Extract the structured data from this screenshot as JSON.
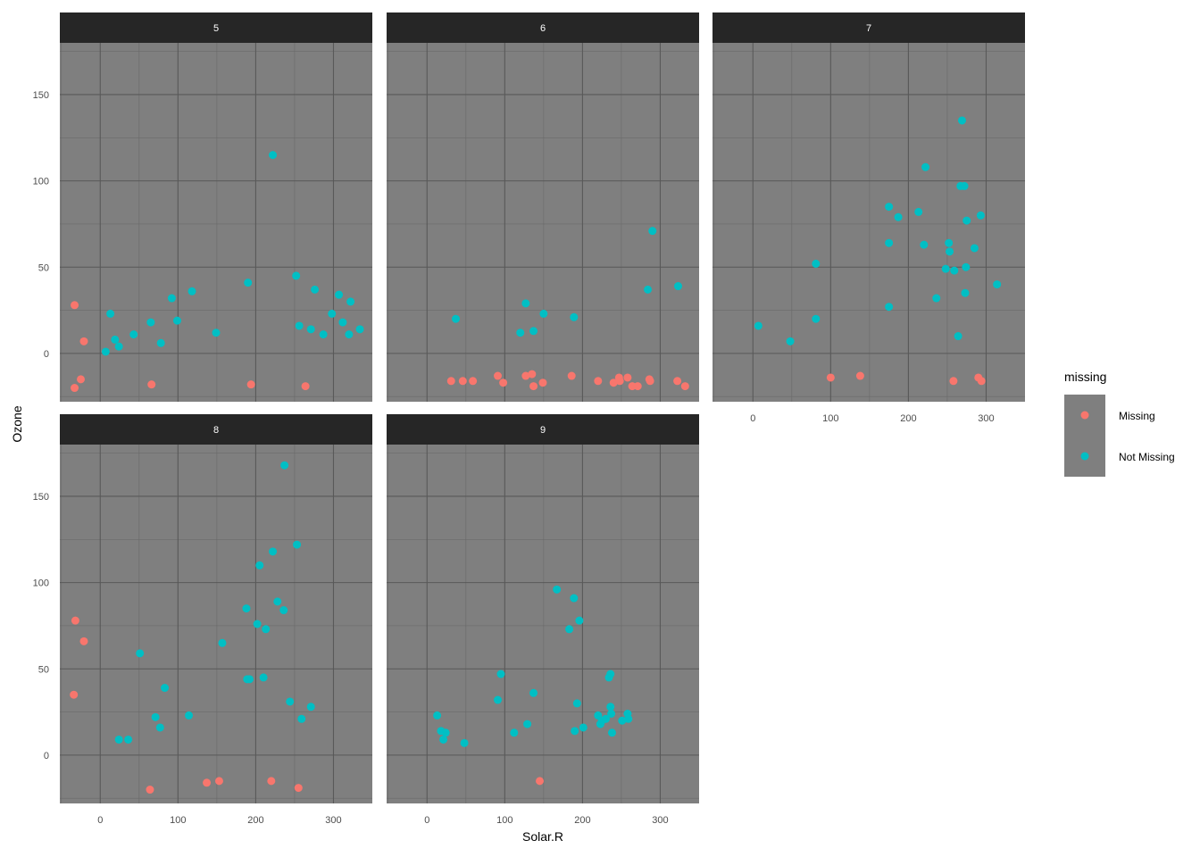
{
  "chart_data": {
    "type": "scatter",
    "facet_by": "Month",
    "xlabel": "Solar.R",
    "ylabel": "Ozone",
    "xlim": [
      -52,
      350
    ],
    "ylim": [
      -28,
      180
    ],
    "x_ticks": [
      0,
      100,
      200,
      300
    ],
    "y_ticks": [
      0,
      50,
      100,
      150
    ],
    "grid": true,
    "legend": {
      "title": "missing",
      "position": "right",
      "entries": [
        {
          "label": "Missing",
          "color": "#F8766D"
        },
        {
          "label": "Not Missing",
          "color": "#00BFC4"
        }
      ]
    },
    "colors": {
      "Missing": "#F8766D",
      "Not Missing": "#00BFC4",
      "panel_background": "#7F7F7F",
      "strip_background": "#262626",
      "grid_major": "#595959"
    },
    "panels": [
      {
        "label": "5",
        "points": [
          {
            "x": -33,
            "y": 28,
            "m": "Missing"
          },
          {
            "x": -21,
            "y": 7,
            "m": "Missing"
          },
          {
            "x": -25,
            "y": -15,
            "m": "Missing"
          },
          {
            "x": -33,
            "y": -20,
            "m": "Missing"
          },
          {
            "x": 66,
            "y": -18,
            "m": "Missing"
          },
          {
            "x": 194,
            "y": -18,
            "m": "Missing"
          },
          {
            "x": 264,
            "y": -19,
            "m": "Missing"
          },
          {
            "x": 7,
            "y": 1,
            "m": "Not Missing"
          },
          {
            "x": 13,
            "y": 23,
            "m": "Not Missing"
          },
          {
            "x": 19,
            "y": 8,
            "m": "Not Missing"
          },
          {
            "x": 24,
            "y": 4,
            "m": "Not Missing"
          },
          {
            "x": 43,
            "y": 11,
            "m": "Not Missing"
          },
          {
            "x": 65,
            "y": 18,
            "m": "Not Missing"
          },
          {
            "x": 78,
            "y": 6,
            "m": "Not Missing"
          },
          {
            "x": 92,
            "y": 32,
            "m": "Not Missing"
          },
          {
            "x": 99,
            "y": 19,
            "m": "Not Missing"
          },
          {
            "x": 118,
            "y": 36,
            "m": "Not Missing"
          },
          {
            "x": 149,
            "y": 12,
            "m": "Not Missing"
          },
          {
            "x": 190,
            "y": 41,
            "m": "Not Missing"
          },
          {
            "x": 222,
            "y": 115,
            "m": "Not Missing"
          },
          {
            "x": 252,
            "y": 45,
            "m": "Not Missing"
          },
          {
            "x": 256,
            "y": 16,
            "m": "Not Missing"
          },
          {
            "x": 271,
            "y": 14,
            "m": "Not Missing"
          },
          {
            "x": 276,
            "y": 37,
            "m": "Not Missing"
          },
          {
            "x": 287,
            "y": 11,
            "m": "Not Missing"
          },
          {
            "x": 298,
            "y": 23,
            "m": "Not Missing"
          },
          {
            "x": 307,
            "y": 34,
            "m": "Not Missing"
          },
          {
            "x": 312,
            "y": 18,
            "m": "Not Missing"
          },
          {
            "x": 320,
            "y": 11,
            "m": "Not Missing"
          },
          {
            "x": 322,
            "y": 30,
            "m": "Not Missing"
          },
          {
            "x": 334,
            "y": 14,
            "m": "Not Missing"
          }
        ]
      },
      {
        "label": "6",
        "points": [
          {
            "x": 31,
            "y": -16,
            "m": "Missing"
          },
          {
            "x": 46,
            "y": -16,
            "m": "Missing"
          },
          {
            "x": 59,
            "y": -16,
            "m": "Missing"
          },
          {
            "x": 91,
            "y": -13,
            "m": "Missing"
          },
          {
            "x": 98,
            "y": -17,
            "m": "Missing"
          },
          {
            "x": 127,
            "y": -13,
            "m": "Missing"
          },
          {
            "x": 135,
            "y": -12,
            "m": "Missing"
          },
          {
            "x": 137,
            "y": -19,
            "m": "Missing"
          },
          {
            "x": 149,
            "y": -17,
            "m": "Missing"
          },
          {
            "x": 186,
            "y": -13,
            "m": "Missing"
          },
          {
            "x": 220,
            "y": -16,
            "m": "Missing"
          },
          {
            "x": 240,
            "y": -17,
            "m": "Missing"
          },
          {
            "x": 247,
            "y": -14,
            "m": "Missing"
          },
          {
            "x": 248,
            "y": -16,
            "m": "Missing"
          },
          {
            "x": 258,
            "y": -14,
            "m": "Missing"
          },
          {
            "x": 264,
            "y": -19,
            "m": "Missing"
          },
          {
            "x": 271,
            "y": -19,
            "m": "Missing"
          },
          {
            "x": 286,
            "y": -15,
            "m": "Missing"
          },
          {
            "x": 287,
            "y": -16,
            "m": "Missing"
          },
          {
            "x": 322,
            "y": -16,
            "m": "Missing"
          },
          {
            "x": 332,
            "y": -19,
            "m": "Missing"
          },
          {
            "x": 37,
            "y": 20,
            "m": "Not Missing"
          },
          {
            "x": 120,
            "y": 12,
            "m": "Not Missing"
          },
          {
            "x": 127,
            "y": 29,
            "m": "Not Missing"
          },
          {
            "x": 137,
            "y": 13,
            "m": "Not Missing"
          },
          {
            "x": 150,
            "y": 23,
            "m": "Not Missing"
          },
          {
            "x": 189,
            "y": 21,
            "m": "Not Missing"
          },
          {
            "x": 284,
            "y": 37,
            "m": "Not Missing"
          },
          {
            "x": 290,
            "y": 71,
            "m": "Not Missing"
          },
          {
            "x": 323,
            "y": 39,
            "m": "Not Missing"
          }
        ]
      },
      {
        "label": "7",
        "points": [
          {
            "x": 100,
            "y": -14,
            "m": "Missing"
          },
          {
            "x": 138,
            "y": -13,
            "m": "Missing"
          },
          {
            "x": 258,
            "y": -16,
            "m": "Missing"
          },
          {
            "x": 290,
            "y": -14,
            "m": "Missing"
          },
          {
            "x": 294,
            "y": -16,
            "m": "Missing"
          },
          {
            "x": 7,
            "y": 16,
            "m": "Not Missing"
          },
          {
            "x": 48,
            "y": 7,
            "m": "Not Missing"
          },
          {
            "x": 81,
            "y": 52,
            "m": "Not Missing"
          },
          {
            "x": 81,
            "y": 20,
            "m": "Not Missing"
          },
          {
            "x": 175,
            "y": 85,
            "m": "Not Missing"
          },
          {
            "x": 175,
            "y": 64,
            "m": "Not Missing"
          },
          {
            "x": 175,
            "y": 27,
            "m": "Not Missing"
          },
          {
            "x": 187,
            "y": 79,
            "m": "Not Missing"
          },
          {
            "x": 213,
            "y": 82,
            "m": "Not Missing"
          },
          {
            "x": 220,
            "y": 63,
            "m": "Not Missing"
          },
          {
            "x": 222,
            "y": 108,
            "m": "Not Missing"
          },
          {
            "x": 236,
            "y": 32,
            "m": "Not Missing"
          },
          {
            "x": 248,
            "y": 49,
            "m": "Not Missing"
          },
          {
            "x": 252,
            "y": 64,
            "m": "Not Missing"
          },
          {
            "x": 253,
            "y": 59,
            "m": "Not Missing"
          },
          {
            "x": 259,
            "y": 48,
            "m": "Not Missing"
          },
          {
            "x": 264,
            "y": 10,
            "m": "Not Missing"
          },
          {
            "x": 267,
            "y": 97,
            "m": "Not Missing"
          },
          {
            "x": 269,
            "y": 135,
            "m": "Not Missing"
          },
          {
            "x": 272,
            "y": 97,
            "m": "Not Missing"
          },
          {
            "x": 273,
            "y": 35,
            "m": "Not Missing"
          },
          {
            "x": 274,
            "y": 50,
            "m": "Not Missing"
          },
          {
            "x": 275,
            "y": 77,
            "m": "Not Missing"
          },
          {
            "x": 285,
            "y": 61,
            "m": "Not Missing"
          },
          {
            "x": 293,
            "y": 80,
            "m": "Not Missing"
          },
          {
            "x": 314,
            "y": 40,
            "m": "Not Missing"
          }
        ]
      },
      {
        "label": "8",
        "points": [
          {
            "x": -32,
            "y": 78,
            "m": "Missing"
          },
          {
            "x": -21,
            "y": 66,
            "m": "Missing"
          },
          {
            "x": -34,
            "y": 35,
            "m": "Missing"
          },
          {
            "x": 64,
            "y": -20,
            "m": "Missing"
          },
          {
            "x": 137,
            "y": -16,
            "m": "Missing"
          },
          {
            "x": 153,
            "y": -15,
            "m": "Missing"
          },
          {
            "x": 220,
            "y": -15,
            "m": "Missing"
          },
          {
            "x": 255,
            "y": -19,
            "m": "Missing"
          },
          {
            "x": 24,
            "y": 9,
            "m": "Not Missing"
          },
          {
            "x": 36,
            "y": 9,
            "m": "Not Missing"
          },
          {
            "x": 51,
            "y": 59,
            "m": "Not Missing"
          },
          {
            "x": 71,
            "y": 22,
            "m": "Not Missing"
          },
          {
            "x": 77,
            "y": 16,
            "m": "Not Missing"
          },
          {
            "x": 83,
            "y": 39,
            "m": "Not Missing"
          },
          {
            "x": 114,
            "y": 23,
            "m": "Not Missing"
          },
          {
            "x": 157,
            "y": 65,
            "m": "Not Missing"
          },
          {
            "x": 188,
            "y": 85,
            "m": "Not Missing"
          },
          {
            "x": 189,
            "y": 44,
            "m": "Not Missing"
          },
          {
            "x": 192,
            "y": 44,
            "m": "Not Missing"
          },
          {
            "x": 202,
            "y": 76,
            "m": "Not Missing"
          },
          {
            "x": 205,
            "y": 110,
            "m": "Not Missing"
          },
          {
            "x": 210,
            "y": 45,
            "m": "Not Missing"
          },
          {
            "x": 213,
            "y": 73,
            "m": "Not Missing"
          },
          {
            "x": 222,
            "y": 118,
            "m": "Not Missing"
          },
          {
            "x": 228,
            "y": 89,
            "m": "Not Missing"
          },
          {
            "x": 236,
            "y": 84,
            "m": "Not Missing"
          },
          {
            "x": 237,
            "y": 168,
            "m": "Not Missing"
          },
          {
            "x": 244,
            "y": 31,
            "m": "Not Missing"
          },
          {
            "x": 253,
            "y": 122,
            "m": "Not Missing"
          },
          {
            "x": 259,
            "y": 21,
            "m": "Not Missing"
          },
          {
            "x": 271,
            "y": 28,
            "m": "Not Missing"
          }
        ]
      },
      {
        "label": "9",
        "points": [
          {
            "x": 145,
            "y": -15,
            "m": "Missing"
          },
          {
            "x": 13,
            "y": 23,
            "m": "Not Missing"
          },
          {
            "x": 18,
            "y": 14,
            "m": "Not Missing"
          },
          {
            "x": 21,
            "y": 9,
            "m": "Not Missing"
          },
          {
            "x": 24,
            "y": 13,
            "m": "Not Missing"
          },
          {
            "x": 48,
            "y": 7,
            "m": "Not Missing"
          },
          {
            "x": 91,
            "y": 32,
            "m": "Not Missing"
          },
          {
            "x": 95,
            "y": 47,
            "m": "Not Missing"
          },
          {
            "x": 112,
            "y": 13,
            "m": "Not Missing"
          },
          {
            "x": 129,
            "y": 18,
            "m": "Not Missing"
          },
          {
            "x": 137,
            "y": 36,
            "m": "Not Missing"
          },
          {
            "x": 167,
            "y": 96,
            "m": "Not Missing"
          },
          {
            "x": 183,
            "y": 73,
            "m": "Not Missing"
          },
          {
            "x": 189,
            "y": 91,
            "m": "Not Missing"
          },
          {
            "x": 190,
            "y": 14,
            "m": "Not Missing"
          },
          {
            "x": 193,
            "y": 30,
            "m": "Not Missing"
          },
          {
            "x": 196,
            "y": 78,
            "m": "Not Missing"
          },
          {
            "x": 201,
            "y": 16,
            "m": "Not Missing"
          },
          {
            "x": 220,
            "y": 23,
            "m": "Not Missing"
          },
          {
            "x": 223,
            "y": 18,
            "m": "Not Missing"
          },
          {
            "x": 225,
            "y": 20,
            "m": "Not Missing"
          },
          {
            "x": 230,
            "y": 21,
            "m": "Not Missing"
          },
          {
            "x": 234,
            "y": 45,
            "m": "Not Missing"
          },
          {
            "x": 236,
            "y": 47,
            "m": "Not Missing"
          },
          {
            "x": 236,
            "y": 28,
            "m": "Not Missing"
          },
          {
            "x": 237,
            "y": 24,
            "m": "Not Missing"
          },
          {
            "x": 238,
            "y": 13,
            "m": "Not Missing"
          },
          {
            "x": 251,
            "y": 20,
            "m": "Not Missing"
          },
          {
            "x": 258,
            "y": 24,
            "m": "Not Missing"
          },
          {
            "x": 259,
            "y": 21,
            "m": "Not Missing"
          }
        ]
      }
    ]
  }
}
